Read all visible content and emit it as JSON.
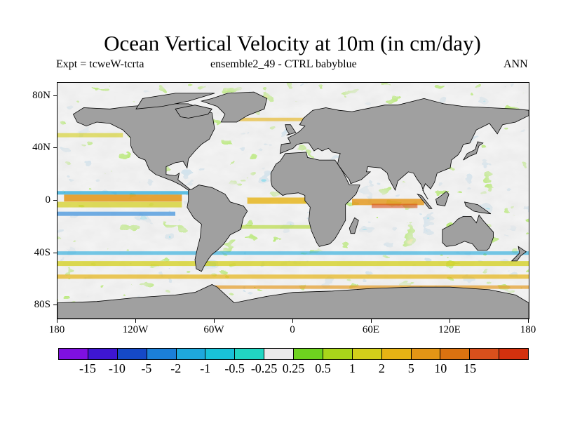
{
  "header": {
    "title": "Ocean Vertical Velocity at 10m (in cm/day)",
    "experiment": "Expt = tcweW-tcrta",
    "ensemble": "ensemble2_49 - CTRL babyblue",
    "period": "ANN"
  },
  "map": {
    "land_color": "#a0a0a0",
    "coast_color": "#000000",
    "lat_labels": [
      "80N",
      "40N",
      "0",
      "40S",
      "80S"
    ],
    "lat_values": [
      80,
      40,
      0,
      -40,
      -80
    ],
    "lon_labels": [
      "180",
      "120W",
      "60W",
      "0",
      "60E",
      "120E",
      "180"
    ],
    "lon_values": [
      -180,
      -120,
      -60,
      0,
      60,
      120,
      180
    ]
  },
  "colorbar": {
    "colors": [
      "#7f10e0",
      "#3e16d2",
      "#1549c8",
      "#1b7fd8",
      "#1ea8dc",
      "#19c2d8",
      "#21d6c2",
      "#eaeaea",
      "#6ed31f",
      "#a9d61a",
      "#d3cf1a",
      "#e6b314",
      "#e39515",
      "#db7210",
      "#d8501c",
      "#d4310e"
    ],
    "labels": [
      "-15",
      "-10",
      "-5",
      "-2",
      "-1",
      "-0.5",
      "-0.25",
      "0.25",
      "0.5",
      "1",
      "2",
      "5",
      "10",
      "15"
    ]
  }
}
